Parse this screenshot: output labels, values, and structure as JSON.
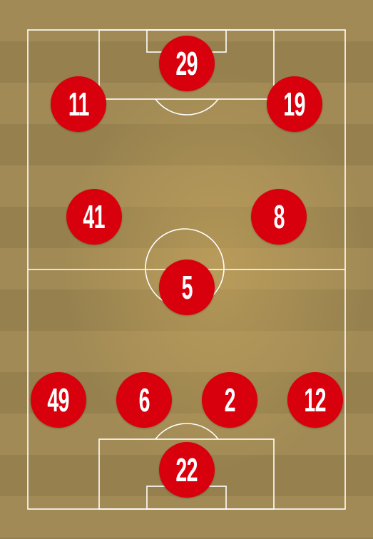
{
  "players": [
    {
      "number": "29"
    },
    {
      "number": "11"
    },
    {
      "number": "19"
    },
    {
      "number": "41"
    },
    {
      "number": "8"
    },
    {
      "number": "5"
    },
    {
      "number": "49"
    },
    {
      "number": "6"
    },
    {
      "number": "2"
    },
    {
      "number": "12"
    },
    {
      "number": "22"
    }
  ],
  "colors": {
    "player_fill": "#d8000c",
    "player_text": "#ffffff",
    "line": "#ffffff"
  }
}
